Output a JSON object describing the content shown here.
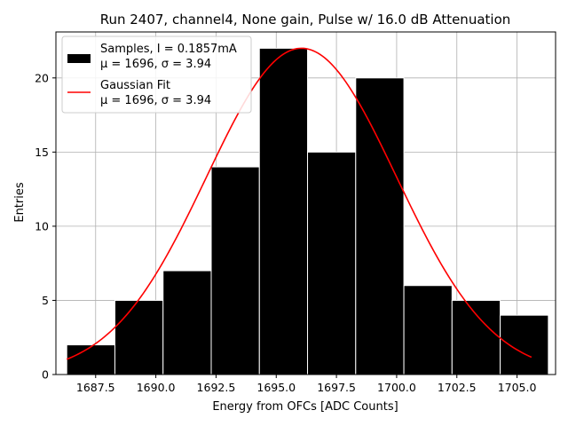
{
  "chart_data": {
    "type": "bar",
    "title": "Run 2407, channel4, None gain, Pulse w/ 16.0 dB Attenuation",
    "xlabel": "Energy from OFCs [ADC Counts]",
    "ylabel": "Entries",
    "xlim": [
      1685.85,
      1706.6
    ],
    "ylim": [
      0,
      23.1
    ],
    "xticks": [
      1687.5,
      1690.0,
      1692.5,
      1695.0,
      1697.5,
      1700.0,
      1702.5,
      1705.0
    ],
    "xtick_labels": [
      "1687.5",
      "1690.0",
      "1692.5",
      "1695.0",
      "1697.5",
      "1700.0",
      "1702.5",
      "1705.0"
    ],
    "yticks": [
      0,
      5,
      10,
      15,
      20
    ],
    "ytick_labels": [
      "0",
      "5",
      "10",
      "15",
      "20"
    ],
    "grid": true,
    "legend_position": "top-left",
    "histogram": {
      "name": "Samples, I = 0.1857mA",
      "stats_label": "μ = 1696, σ = 3.94",
      "color": "#000000",
      "edge_color": "#ffffff",
      "bin_edges": [
        1686.3,
        1688.3,
        1690.3,
        1692.3,
        1694.3,
        1696.3,
        1698.3,
        1700.3,
        1702.3,
        1704.3,
        1706.3
      ],
      "counts": [
        2,
        5,
        7,
        14,
        22,
        15,
        20,
        6,
        5,
        4
      ]
    },
    "fit": {
      "name": "Gaussian Fit",
      "stats_label": "μ = 1696, σ = 3.94",
      "color": "#ff0000",
      "amplitude": 22.0,
      "mu": 1696.05,
      "sigma": 3.94,
      "x_range": [
        1686.3,
        1705.6
      ]
    }
  }
}
